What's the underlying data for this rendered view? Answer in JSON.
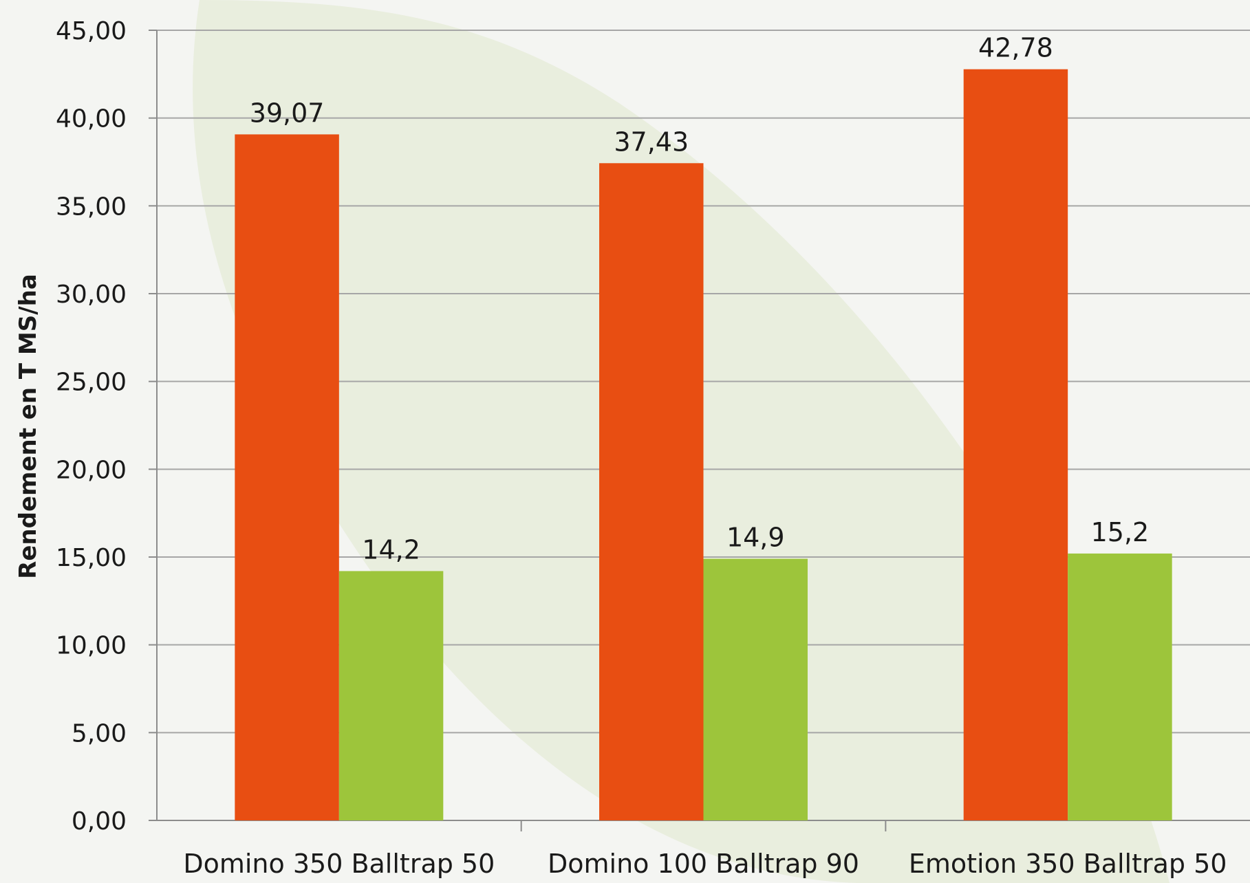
{
  "chart_data": {
    "type": "bar",
    "title": "",
    "xlabel": "",
    "ylabel": "Rendement en T MS/ha",
    "ylim": [
      0,
      45
    ],
    "ytick_step": 5,
    "ytick_labels": [
      "0,00",
      "5,00",
      "10,00",
      "15,00",
      "20,00",
      "25,00",
      "30,00",
      "35,00",
      "40,00",
      "45,00"
    ],
    "grid": true,
    "legend": "none",
    "categories": [
      "Domino 350 Balltrap 50",
      "Domino 100 Balltrap 90",
      "Emotion 350 Balltrap 50"
    ],
    "series": [
      {
        "values": [
          39.07,
          37.43,
          42.78
        ],
        "labels": [
          "39,07",
          "37,43",
          "42,78"
        ],
        "color": "#e84e12"
      },
      {
        "values": [
          14.2,
          14.9,
          15.2
        ],
        "labels": [
          "14,2",
          "14,9",
          "15,2"
        ],
        "color": "#9dc53b"
      }
    ]
  },
  "colors": {
    "background": "#f4f5f2",
    "leaf_shape": "#e8eddc",
    "gridline": "#a6a6a6",
    "axis": "#8c8c8c"
  }
}
